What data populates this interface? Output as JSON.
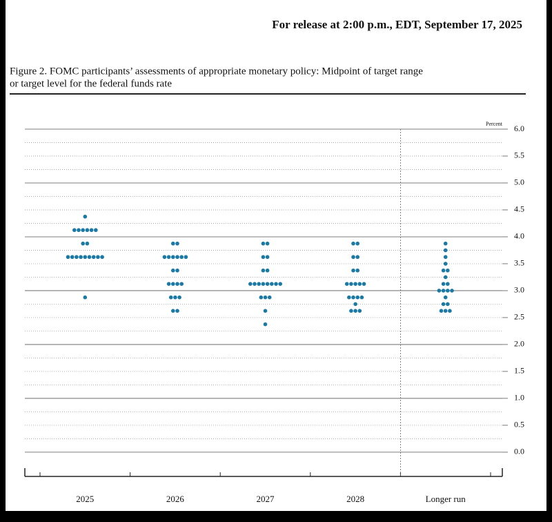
{
  "header": {
    "release": "For release at 2:00 p.m., EDT, September 17, 2025"
  },
  "chart_data": {
    "type": "dot",
    "title": "Figure 2. FOMC participants’ assessments of appropriate monetary policy: Midpoint of target range",
    "subtitle": "or target level for the federal funds rate",
    "ylabel": "Percent",
    "categories": [
      "2025",
      "2026",
      "2027",
      "2028",
      "Longer run"
    ],
    "color": "#1b79a6",
    "values": [
      [
        4.375,
        4.125,
        4.125,
        4.125,
        4.125,
        4.125,
        4.125,
        3.875,
        3.875,
        3.625,
        3.625,
        3.625,
        3.625,
        3.625,
        3.625,
        3.625,
        3.625,
        3.625,
        2.875
      ],
      [
        3.875,
        3.875,
        3.625,
        3.625,
        3.625,
        3.625,
        3.625,
        3.625,
        3.375,
        3.375,
        3.125,
        3.125,
        3.125,
        3.125,
        2.875,
        2.875,
        2.875,
        2.625,
        2.625
      ],
      [
        3.875,
        3.875,
        3.625,
        3.625,
        3.375,
        3.375,
        3.125,
        3.125,
        3.125,
        3.125,
        3.125,
        3.125,
        3.125,
        3.125,
        2.875,
        2.875,
        2.875,
        2.625,
        2.375
      ],
      [
        3.875,
        3.875,
        3.625,
        3.625,
        3.375,
        3.375,
        3.125,
        3.125,
        3.125,
        3.125,
        3.125,
        2.875,
        2.875,
        2.875,
        2.875,
        2.75,
        2.625,
        2.625,
        2.625
      ],
      [
        3.875,
        3.75,
        3.625,
        3.5,
        3.375,
        3.375,
        3.25,
        3.125,
        3.125,
        3.0,
        3.0,
        3.0,
        3.0,
        2.875,
        2.75,
        2.75,
        2.625,
        2.625,
        2.625
      ]
    ],
    "ylim": [
      -0.45,
      6
    ],
    "yticks": [
      {
        "value": 0,
        "label": "0.0"
      },
      0.5,
      {
        "value": 1,
        "label": "1.0"
      },
      1.5,
      {
        "value": 2,
        "label": "2.0"
      },
      2.5,
      {
        "value": 3,
        "label": "3.0"
      },
      3.5,
      {
        "value": 4,
        "label": "4.0"
      },
      4.5,
      {
        "value": 5,
        "label": "5.0"
      },
      5.5,
      {
        "value": 6,
        "label": "6.0"
      }
    ],
    "minor_yticks": [
      0.25,
      0.75,
      1.25,
      1.75,
      2.25,
      2.75,
      3.25,
      3.75,
      4.25,
      4.75,
      5.25,
      5.75
    ],
    "grid": true
  }
}
